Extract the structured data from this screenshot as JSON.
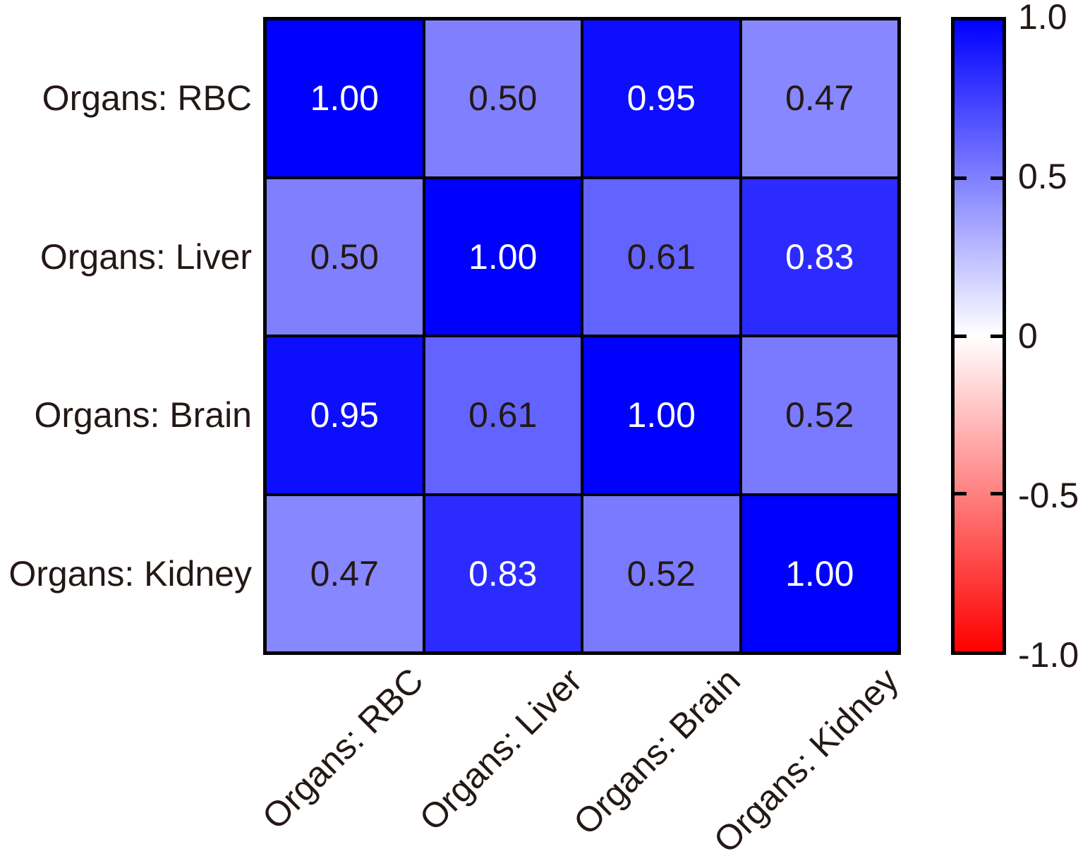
{
  "chart_data": {
    "type": "heatmap",
    "title": "",
    "categories": [
      "Organs: RBC",
      "Organs: Liver",
      "Organs: Brain",
      "Organs: Kidney"
    ],
    "matrix": [
      [
        1.0,
        0.5,
        0.95,
        0.47
      ],
      [
        0.5,
        1.0,
        0.61,
        0.83
      ],
      [
        0.95,
        0.61,
        1.0,
        0.52
      ],
      [
        0.47,
        0.83,
        0.52,
        1.0
      ]
    ],
    "value_decimals": 2,
    "cell_text_colors": {
      "light": "#FFFFFF",
      "dark": "#231815",
      "light_threshold": 0.7
    },
    "colorbar": {
      "min": -1.0,
      "max": 1.0,
      "tick_labels": [
        "1.0",
        "0.5",
        "0",
        "-0.5",
        "-1.0"
      ],
      "tick_values": [
        1.0,
        0.5,
        0,
        -0.5,
        -1.0
      ],
      "colors": {
        "positive": "#0000FF",
        "zero": "#FFFFFF",
        "negative": "#FF0000"
      }
    },
    "axis_text_color": "#231815",
    "grid_line_color": "#000000"
  }
}
